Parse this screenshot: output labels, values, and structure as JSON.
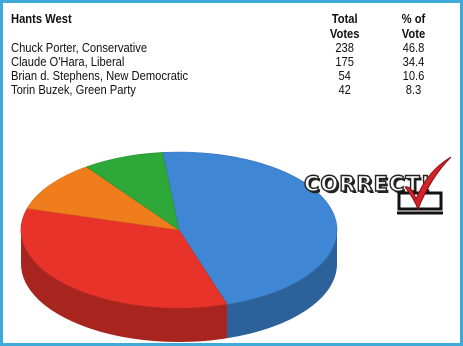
{
  "chart_data": {
    "type": "pie",
    "title": "Hants West",
    "columns": [
      "Total Votes",
      "% of Vote"
    ],
    "rows": [
      {
        "candidate": "Chuck Porter, Conservative",
        "votes": "238",
        "percent": "46.8"
      },
      {
        "candidate": "Claude O'Hara, Liberal",
        "votes": "175",
        "percent": "34.4"
      },
      {
        "candidate": "Brian d. Stephens, New Democratic",
        "votes": "54",
        "percent": "10.6"
      },
      {
        "candidate": "Torin Buzek, Green Party",
        "votes": "42",
        "percent": "8.3"
      }
    ],
    "slices": [
      {
        "name": "Conservative",
        "value": 46.8,
        "color": "#3f87d4"
      },
      {
        "name": "Liberal",
        "value": 34.4,
        "color": "#e8332a"
      },
      {
        "name": "New Democratic",
        "value": 10.6,
        "color": "#f07d1c"
      },
      {
        "name": "Green Party",
        "value": 8.3,
        "color": "#2fa83a"
      }
    ]
  },
  "stamp": {
    "text": "CORRECT!",
    "icon": "checkbox-checked-icon"
  }
}
